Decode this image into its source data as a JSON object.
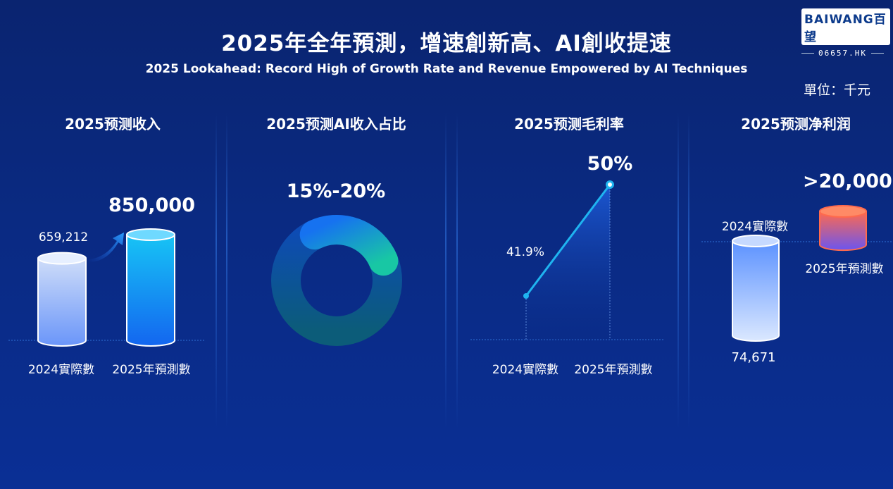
{
  "header": {
    "title": "2025年全年預測，增速創新高、AI創收提速",
    "subtitle": "2025 Lookahead: Record High of Growth Rate and Revenue Empowered by AI Techniques",
    "unit": "單位：千元"
  },
  "logo": {
    "brand_prefix": "BAIWANG",
    "brand_cn": "百望",
    "ticker": "06657.HK"
  },
  "colors": {
    "accent": "#1ec8ff",
    "bar_2025": "#1473f0",
    "bar_2024": "#8fb6ff",
    "profit_forecast": "#ff6a5a",
    "donut_track": "#0d49a8",
    "donut_highlight": "#17c9a8"
  },
  "chart_data": [
    {
      "type": "bar",
      "title": "2025预测收入",
      "categories": [
        "2024實際數",
        "2025年預測數"
      ],
      "values": [
        659212,
        850000
      ],
      "value_labels": [
        "659,212",
        "850,000"
      ]
    },
    {
      "type": "pie",
      "title": "2025预测AI收入占比",
      "value_label": "15%-20%",
      "range_percent": [
        15,
        20
      ]
    },
    {
      "type": "line",
      "title": "2025预测毛利率",
      "categories": [
        "2024實際數",
        "2025年預測數"
      ],
      "values": [
        41.9,
        50
      ],
      "value_labels": [
        "41.9%",
        "50%"
      ]
    },
    {
      "type": "bar",
      "title": "2025预测净利润",
      "categories": [
        "2024實際數",
        "2025年預測數"
      ],
      "values": [
        74671,
        20000
      ],
      "value_labels": [
        "74,671",
        ">20,000"
      ]
    }
  ]
}
